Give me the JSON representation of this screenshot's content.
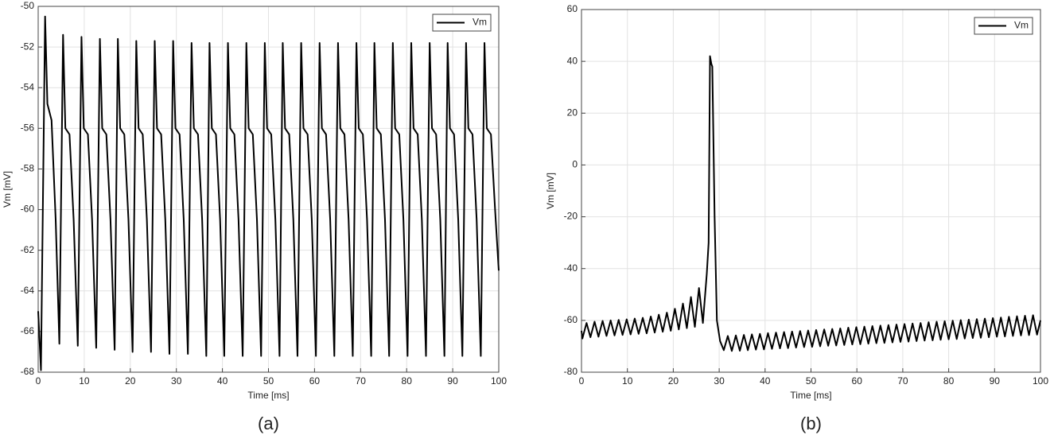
{
  "chart_data": [
    {
      "type": "line",
      "x_label": "Time [ms]",
      "y_label": "Vm [mV]",
      "caption": "(a)",
      "xlim": [
        0,
        100
      ],
      "ylim": [
        -68,
        -50
      ],
      "xticks": [
        0,
        10,
        20,
        30,
        40,
        50,
        60,
        70,
        80,
        90,
        100
      ],
      "yticks": [
        -68,
        -66,
        -64,
        -62,
        -60,
        -58,
        -56,
        -54,
        -52,
        -50
      ],
      "grid": true,
      "legend": "upper right",
      "x": [
        0,
        0.6,
        1.5,
        2.0,
        2.9,
        3.8,
        4.6,
        5.4,
        5.9,
        6.8,
        7.7,
        8.6,
        9.4,
        9.9,
        10.8,
        11.7,
        12.6,
        13.4,
        13.9,
        14.8,
        15.7,
        16.6,
        17.3,
        17.8,
        18.7,
        19.6,
        20.5,
        21.3,
        21.8,
        22.7,
        23.6,
        24.5,
        25.3,
        25.8,
        26.7,
        27.6,
        28.5,
        29.3,
        29.8,
        30.7,
        31.6,
        32.5,
        33.3,
        33.8,
        34.7,
        35.6,
        36.5,
        37.2,
        37.7,
        38.6,
        39.5,
        40.4,
        41.2,
        41.7,
        42.6,
        43.5,
        44.4,
        45.2,
        45.7,
        46.6,
        47.5,
        48.4,
        49.2,
        49.7,
        50.6,
        51.5,
        52.4,
        53.1,
        53.6,
        54.5,
        55.4,
        56.3,
        57.1,
        57.6,
        58.5,
        59.4,
        60.3,
        61.1,
        61.6,
        62.5,
        63.4,
        64.3,
        65.1,
        65.6,
        66.5,
        67.4,
        68.3,
        69.1,
        69.6,
        70.5,
        71.4,
        72.3,
        73,
        73.5,
        74.4,
        75.3,
        76.2,
        77,
        77.5,
        78.4,
        79.3,
        80.2,
        81,
        81.5,
        82.4,
        83.3,
        84.2,
        85,
        85.5,
        86.4,
        87.3,
        88.2,
        88.9,
        89.4,
        90.3,
        91.2,
        92.1,
        92.9,
        93.4,
        94.3,
        95.2,
        96.1,
        96.9,
        97.4,
        98.3,
        99.2,
        100
      ],
      "series": [
        {
          "name": "Vm",
          "color": "#000000",
          "values": [
            -65,
            -67.9,
            -50.5,
            -54.8,
            -55.6,
            -60.5,
            -66.6,
            -51.4,
            -56,
            -56.3,
            -60.5,
            -66.7,
            -51.5,
            -56,
            -56.3,
            -60.5,
            -66.8,
            -51.6,
            -56,
            -56.3,
            -60.5,
            -66.9,
            -51.6,
            -56,
            -56.3,
            -60.5,
            -67,
            -51.7,
            -56,
            -56.3,
            -60.5,
            -67,
            -51.7,
            -56,
            -56.3,
            -60.5,
            -67.1,
            -51.7,
            -56,
            -56.3,
            -60.5,
            -67.1,
            -51.8,
            -56,
            -56.3,
            -60.5,
            -67.2,
            -51.8,
            -56,
            -56.3,
            -60.5,
            -67.2,
            -51.8,
            -56,
            -56.3,
            -60.5,
            -67.2,
            -51.8,
            -56,
            -56.3,
            -60.5,
            -67.2,
            -51.8,
            -56,
            -56.3,
            -60.5,
            -67.2,
            -51.8,
            -56,
            -56.3,
            -60.5,
            -67.2,
            -51.8,
            -56,
            -56.3,
            -60.5,
            -67.2,
            -51.8,
            -56,
            -56.3,
            -60.5,
            -67.2,
            -51.8,
            -56,
            -56.3,
            -60.5,
            -67.2,
            -51.8,
            -56,
            -56.3,
            -60.5,
            -67.2,
            -51.8,
            -56,
            -56.3,
            -60.5,
            -67.2,
            -51.8,
            -56,
            -56.3,
            -60.5,
            -67.2,
            -51.8,
            -56,
            -56.3,
            -60.5,
            -67.2,
            -51.8,
            -56,
            -56.3,
            -60.5,
            -67.2,
            -51.8,
            -56,
            -56.3,
            -60.5,
            -67.2,
            -51.8,
            -56,
            -56.3,
            -60.5,
            -67.2,
            -51.8,
            -56,
            -56.3,
            -60,
            -63
          ]
        }
      ]
    },
    {
      "type": "line",
      "x_label": "Time [ms]",
      "y_label": "Vm [mV]",
      "caption": "(b)",
      "xlim": [
        0,
        100
      ],
      "ylim": [
        -80,
        60
      ],
      "xticks": [
        0,
        10,
        20,
        30,
        40,
        50,
        60,
        70,
        80,
        90,
        100
      ],
      "yticks": [
        -80,
        -60,
        -40,
        -20,
        0,
        20,
        40,
        60
      ],
      "grid": true,
      "legend": "upper right",
      "x": [
        0,
        0.2,
        1.1,
        1.95,
        2.85,
        3.7,
        4.6,
        5.45,
        6.35,
        7.2,
        8.1,
        8.95,
        9.85,
        10.7,
        11.6,
        12.45,
        13.35,
        14.2,
        15.1,
        15.95,
        16.85,
        17.7,
        18.6,
        19.45,
        20.35,
        21.2,
        22.1,
        22.95,
        23.85,
        24.7,
        25.6,
        26.45,
        27.3,
        27.7,
        28,
        28.3,
        28.5,
        29,
        29.5,
        30.2,
        31,
        31.88,
        32.75,
        33.63,
        34.5,
        35.38,
        36.25,
        37.13,
        38,
        38.88,
        39.75,
        40.63,
        41.5,
        42.38,
        43.25,
        44.13,
        45,
        45.88,
        46.75,
        47.63,
        48.5,
        49.38,
        50.25,
        51.13,
        52,
        52.88,
        53.75,
        54.63,
        55.5,
        56.38,
        57.25,
        58.13,
        59,
        59.88,
        60.75,
        61.63,
        62.5,
        63.38,
        64.25,
        65.13,
        66,
        66.88,
        67.75,
        68.63,
        69.5,
        70.38,
        71.25,
        72.13,
        73,
        73.88,
        74.75,
        75.63,
        76.5,
        77.38,
        78.25,
        79.13,
        80,
        80.88,
        81.75,
        82.63,
        83.5,
        84.38,
        85.25,
        86.13,
        87,
        87.88,
        88.75,
        89.63,
        90.5,
        91.38,
        92.25,
        93.13,
        94,
        94.88,
        95.75,
        96.63,
        97.5,
        98.38,
        99.25,
        100
      ],
      "series": [
        {
          "name": "Vm",
          "color": "#000000",
          "values": [
            -64,
            -67,
            -61,
            -66.5,
            -60.5,
            -66.3,
            -60.2,
            -66,
            -60,
            -65.8,
            -59.8,
            -65.6,
            -59.6,
            -65.4,
            -59.3,
            -65.2,
            -59,
            -65,
            -58.5,
            -64.7,
            -57.8,
            -64.4,
            -57,
            -64,
            -55.5,
            -63.5,
            -53.5,
            -63,
            -51,
            -62.5,
            -47.5,
            -61,
            -42,
            -30,
            42,
            39,
            38,
            -20,
            -60,
            -68,
            -71.5,
            -66,
            -71.8,
            -65.8,
            -71.7,
            -65.6,
            -71.5,
            -65.4,
            -71.3,
            -65.2,
            -71.2,
            -64.9,
            -71,
            -64.7,
            -70.8,
            -64.5,
            -70.7,
            -64.3,
            -70.5,
            -64.1,
            -70.3,
            -63.9,
            -70.2,
            -63.7,
            -70,
            -63.5,
            -69.8,
            -63.3,
            -69.7,
            -63.1,
            -69.5,
            -62.8,
            -69.3,
            -62.6,
            -69.2,
            -62.4,
            -69,
            -62.2,
            -68.8,
            -62,
            -68.7,
            -61.8,
            -68.5,
            -61.6,
            -68.3,
            -61.4,
            -68.2,
            -61.2,
            -68,
            -61,
            -67.8,
            -60.7,
            -67.7,
            -60.5,
            -67.5,
            -60.3,
            -67.3,
            -60.1,
            -67.2,
            -59.9,
            -67,
            -59.7,
            -66.8,
            -59.5,
            -66.7,
            -59.3,
            -66.5,
            -59.1,
            -66.3,
            -58.9,
            -66.2,
            -58.6,
            -66,
            -58.4,
            -65.8,
            -58.2,
            -65.7,
            -58,
            -65.5,
            -60
          ]
        }
      ]
    }
  ]
}
